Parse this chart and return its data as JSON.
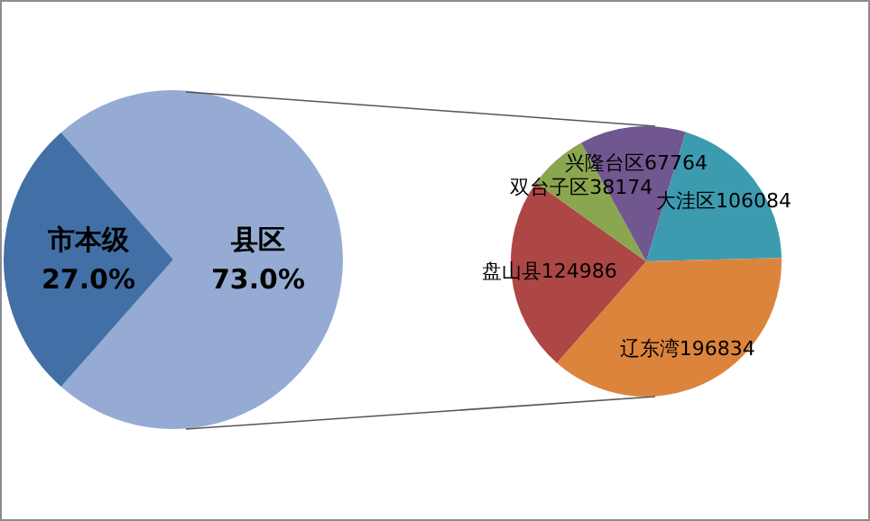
{
  "chart_data": [
    {
      "type": "pie",
      "categories": [
        "县区",
        "市本级"
      ],
      "values": [
        73,
        27
      ],
      "colors": [
        "#95abd3",
        "#4270a6"
      ],
      "value_labels": [
        "73.0%",
        "27.0%"
      ]
    },
    {
      "type": "pie",
      "categories": [
        "大洼区",
        "辽东湾",
        "盘山县",
        "双台子区",
        "兴隆台区"
      ],
      "values": [
        106084,
        196834,
        124986,
        38174,
        67764
      ],
      "colors": [
        "#3d9bb0",
        "#dc843c",
        "#ad4745",
        "#8aa64f",
        "#70578f"
      ],
      "data_labels": true
    }
  ]
}
